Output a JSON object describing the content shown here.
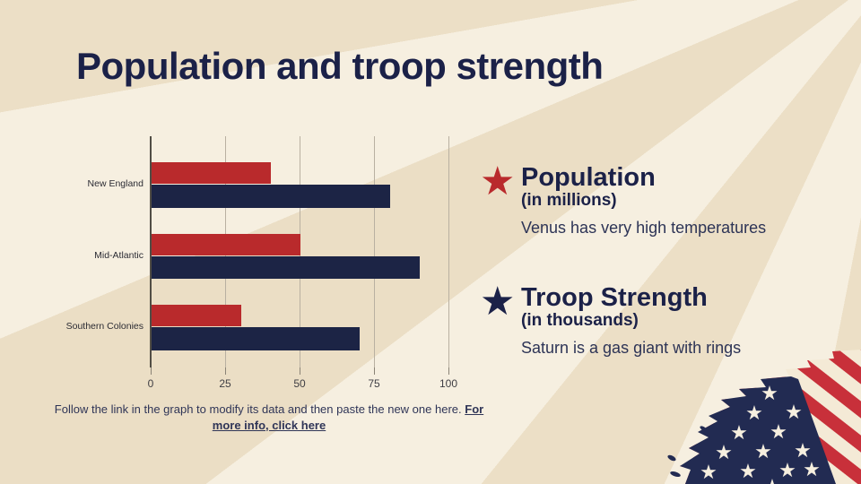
{
  "slide": {
    "title": "Population and troop strength",
    "footer": {
      "text": "Follow the link in the graph to modify its data and then paste the new one here.",
      "link_label": "For more info, click here"
    }
  },
  "legend": {
    "items": [
      {
        "icon": "star-icon",
        "color": "#b92a2c",
        "title": "Population",
        "unit": "(in millions)",
        "description": "Venus has very high temperatures"
      },
      {
        "icon": "star-icon",
        "color": "#1b2148",
        "title": "Troop Strength",
        "unit": "(in thousands)",
        "description": "Saturn is a gas giant with rings"
      }
    ]
  },
  "chart_data": {
    "type": "bar",
    "orientation": "horizontal",
    "categories": [
      "New England",
      "Mid-Atlantic",
      "Southern Colonies"
    ],
    "series": [
      {
        "name": "Population (in millions)",
        "color": "#b92a2c",
        "values": [
          40,
          50,
          30
        ]
      },
      {
        "name": "Troop Strength (in thousands)",
        "color": "#1c2445",
        "values": [
          80,
          90,
          70
        ]
      }
    ],
    "xlim": [
      0,
      100
    ],
    "xticks": [
      0,
      25,
      50,
      75,
      100
    ],
    "grid": true,
    "legend_position": "right"
  },
  "colors": {
    "background_light": "#f6efe0",
    "background_dark": "#ecdfc6",
    "title_navy": "#1b2148",
    "bar_red": "#b92a2c",
    "bar_navy": "#1c2445",
    "flag_red": "#c8303a",
    "flag_navy": "#222b52"
  }
}
